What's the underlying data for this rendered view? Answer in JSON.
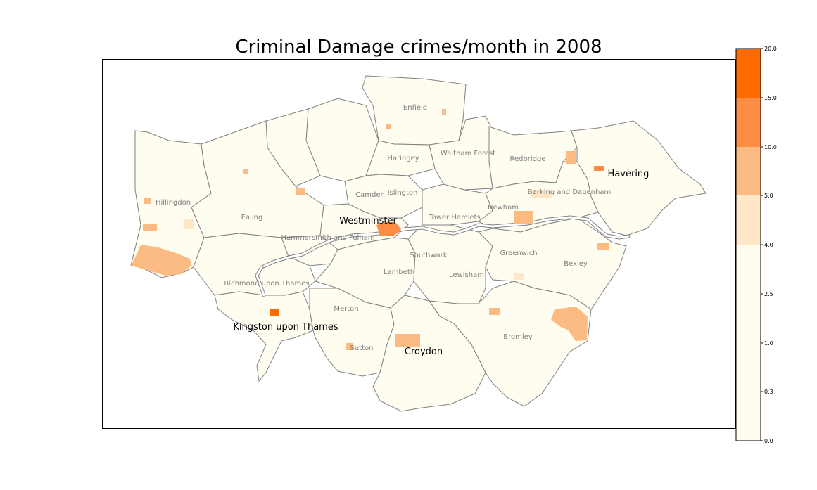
{
  "title": "Criminal Damage crimes/month in 2008",
  "colors": {
    "base": "#fffdf0",
    "band_4_5": "#fee8c8",
    "band_5_10": "#fdbb84",
    "band_10_15": "#fc8d43",
    "band_15_20": "#ff6a00",
    "border": "#808080",
    "river": "#808080"
  },
  "map": {
    "borough_labels": [
      {
        "name": "Enfield",
        "emphasis": false
      },
      {
        "name": "Waltham Forest",
        "emphasis": false
      },
      {
        "name": "Haringey",
        "emphasis": false
      },
      {
        "name": "Redbridge",
        "emphasis": false
      },
      {
        "name": "Havering",
        "emphasis": true
      },
      {
        "name": "Camden",
        "emphasis": false
      },
      {
        "name": "Islington",
        "emphasis": false
      },
      {
        "name": "Hillingdon",
        "emphasis": false
      },
      {
        "name": "Ealing",
        "emphasis": false
      },
      {
        "name": "Barking and Dagenham",
        "emphasis": false
      },
      {
        "name": "Newham",
        "emphasis": false
      },
      {
        "name": "Tower Hamlets",
        "emphasis": false
      },
      {
        "name": "Westminster",
        "emphasis": true
      },
      {
        "name": "Hammersmith and Fulham",
        "emphasis": false
      },
      {
        "name": "Southwark",
        "emphasis": false
      },
      {
        "name": "Greenwich",
        "emphasis": false
      },
      {
        "name": "Bexley",
        "emphasis": false
      },
      {
        "name": "Lambeth",
        "emphasis": false
      },
      {
        "name": "Lewisham",
        "emphasis": false
      },
      {
        "name": "Richmond upon Thames",
        "emphasis": false
      },
      {
        "name": "Merton",
        "emphasis": false
      },
      {
        "name": "Kingston upon Thames",
        "emphasis": true
      },
      {
        "name": "Bromley",
        "emphasis": false
      },
      {
        "name": "Sutton",
        "emphasis": false
      },
      {
        "name": "Croydon",
        "emphasis": true
      }
    ]
  },
  "colorbar": {
    "ticks": [
      "0.0",
      "0.3",
      "1.0",
      "2.5",
      "4.0",
      "5.0",
      "10.0",
      "15.0",
      "20.0"
    ],
    "bands": [
      {
        "from": 0.0,
        "to": 4.0,
        "color": "#fffdf0"
      },
      {
        "from": 4.0,
        "to": 5.0,
        "color": "#fee8c8"
      },
      {
        "from": 5.0,
        "to": 10.0,
        "color": "#fdbb84"
      },
      {
        "from": 10.0,
        "to": 15.0,
        "color": "#fc8d43"
      },
      {
        "from": 15.0,
        "to": 20.0,
        "color": "#ff6a00"
      }
    ]
  }
}
